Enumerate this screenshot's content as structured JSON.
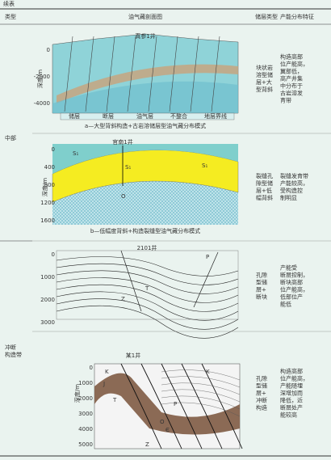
{
  "header": {
    "title": "续表"
  },
  "table": {
    "columns": [
      "类型",
      "油气藏剖面图",
      "储层类型",
      "产能分布特征"
    ],
    "rows": [
      {
        "type": [],
        "well": "真参1井",
        "yticks": [
          "0",
          "-2000",
          "-4000"
        ],
        "axis_title": "深度/m",
        "legend": [
          "储层",
          "断层",
          "油气层",
          "不整合",
          "地层界线"
        ],
        "caption": "a—大型背斜构造+古岩溶储层型油气藏分布模式",
        "reservoir": [
          "块状岩",
          "溶型储",
          "层+大",
          "型背斜"
        ],
        "feature": [
          "构造高部",
          "位产能高，",
          "翼部低，",
          "高产井集",
          "中分布于",
          "古岩溶发",
          "育带"
        ]
      },
      {
        "type": [
          "中部"
        ],
        "well": "官南1井",
        "yticks": [
          "0",
          "400",
          "800",
          "1200",
          "1600"
        ],
        "axis_title": "深度/m",
        "labels": [
          "S₁",
          "S₁",
          "S₁",
          "O"
        ],
        "caption": "b—低幅度背斜+构造裂缝型油气藏分布模式",
        "reservoir": [
          "裂缝孔",
          "隙型储",
          "层+低",
          "幅背斜"
        ],
        "feature": [
          "裂缝发育带",
          "产能较高，",
          "受构造控",
          "制明显"
        ]
      },
      {
        "type": [],
        "well": "2101井",
        "yticks": [
          "0",
          "1000",
          "2000",
          "3000"
        ],
        "labels": [
          "P",
          "T",
          "Z"
        ],
        "reservoir": [
          "孔隙",
          "型储",
          "层+",
          "断块"
        ],
        "feature": [
          "产能受",
          "断层控制，",
          "断块高部",
          "位产能高，",
          "低部位产",
          "能低"
        ]
      },
      {
        "type": [
          "冲断",
          "构造带"
        ],
        "well": "某1井",
        "yticks": [
          "0",
          "1000",
          "2000",
          "3000",
          "4000",
          "5000"
        ],
        "axis_title": "深度/m",
        "labels": [
          "K",
          "J",
          "T",
          "P",
          "O",
          "Є",
          "Z",
          "K"
        ],
        "reservoir": [
          "孔隙",
          "型储",
          "层+",
          "冲断",
          "构造"
        ],
        "feature": [
          "构造高部",
          "位产能高，",
          "产能随埋",
          "深增加而",
          "降低，近",
          "断层处产",
          "能较高"
        ]
      }
    ]
  }
}
